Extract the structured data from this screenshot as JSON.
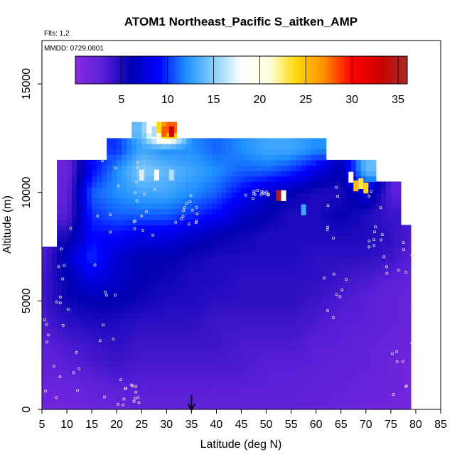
{
  "chart_data": {
    "type": "heatmap",
    "title": "ATOM1 Northeast_Pacific S_aitken_AMP",
    "flights_label": "Flts: 1,2",
    "dates_label": "MMDD: 0729,0801",
    "xlabel": "Latitude (deg N)",
    "ylabel": "Altitude (m)",
    "xlim": [
      5,
      85
    ],
    "ylim": [
      0,
      17000
    ],
    "x_ticks": [
      5,
      10,
      15,
      20,
      25,
      30,
      35,
      40,
      45,
      50,
      55,
      60,
      65,
      70,
      75,
      80,
      85
    ],
    "y_ticks": [
      0,
      5000,
      10000,
      15000
    ],
    "colorbar": {
      "range": [
        0,
        36
      ],
      "ticks": [
        5,
        10,
        15,
        20,
        25,
        30,
        35
      ],
      "placement": "top-inside",
      "colors": [
        "#8a2be2",
        "#5a1fd8",
        "#0000b0",
        "#0000ff",
        "#1e90ff",
        "#87cefa",
        "#ffffff",
        "#ffffe0",
        "#ffd700",
        "#ff8c00",
        "#ff0000",
        "#cd0000",
        "#a52a2a"
      ]
    },
    "marker": {
      "latitude": 35,
      "description": "arrow at x-axis"
    },
    "grid": false,
    "profiles": [
      {
        "lat": 5.5,
        "values": [
          [
            0,
            1.5
          ],
          [
            1000,
            2
          ],
          [
            2000,
            2.5
          ],
          [
            3000,
            3
          ],
          [
            4000,
            3.5
          ],
          [
            5000,
            4
          ],
          [
            6000,
            4
          ],
          [
            7000,
            3.5
          ]
        ]
      },
      {
        "lat": 10,
        "values": [
          [
            0,
            1.5
          ],
          [
            1000,
            2
          ],
          [
            2000,
            3
          ],
          [
            3000,
            3.5
          ],
          [
            4000,
            4.5
          ],
          [
            5000,
            5.5
          ],
          [
            6000,
            6
          ],
          [
            7000,
            7
          ],
          [
            8000,
            5
          ],
          [
            9000,
            3
          ],
          [
            10000,
            2.5
          ],
          [
            11000,
            2
          ]
        ]
      },
      {
        "lat": 15,
        "values": [
          [
            0,
            2
          ],
          [
            1000,
            2.5
          ],
          [
            2000,
            3.5
          ],
          [
            3000,
            4
          ],
          [
            4000,
            5
          ],
          [
            5000,
            6
          ],
          [
            6000,
            8
          ],
          [
            7000,
            10
          ],
          [
            8000,
            9
          ],
          [
            9000,
            10
          ],
          [
            10000,
            11
          ],
          [
            11000,
            9
          ]
        ]
      },
      {
        "lat": 20,
        "values": [
          [
            0,
            2
          ],
          [
            1000,
            3
          ],
          [
            2000,
            4
          ],
          [
            3000,
            4.5
          ],
          [
            4000,
            5
          ],
          [
            5000,
            6
          ],
          [
            6000,
            7
          ],
          [
            7000,
            7
          ],
          [
            8000,
            9
          ],
          [
            9000,
            11
          ],
          [
            10000,
            12
          ],
          [
            11000,
            12
          ],
          [
            12000,
            10
          ]
        ]
      },
      {
        "lat": 25,
        "values": [
          [
            0,
            2.5
          ],
          [
            1000,
            3
          ],
          [
            2000,
            3.5
          ],
          [
            3000,
            4
          ],
          [
            4000,
            4.5
          ],
          [
            5000,
            5.5
          ],
          [
            6000,
            6
          ],
          [
            7000,
            6
          ],
          [
            8000,
            8
          ],
          [
            9000,
            11
          ],
          [
            10000,
            13
          ],
          [
            11000,
            15
          ],
          [
            12000,
            13
          ],
          [
            12800,
            14
          ]
        ]
      },
      {
        "lat": 30,
        "values": [
          [
            0,
            2.5
          ],
          [
            1000,
            3
          ],
          [
            2000,
            3.5
          ],
          [
            3000,
            4
          ],
          [
            4000,
            4.5
          ],
          [
            5000,
            5
          ],
          [
            6000,
            5.5
          ],
          [
            7000,
            6
          ],
          [
            8000,
            8
          ],
          [
            9000,
            11
          ],
          [
            10000,
            13
          ],
          [
            11000,
            14
          ],
          [
            12000,
            12
          ],
          [
            12800,
            28
          ]
        ]
      },
      {
        "lat": 35,
        "values": [
          [
            0,
            2.5
          ],
          [
            1000,
            3
          ],
          [
            2000,
            3.5
          ],
          [
            3000,
            4
          ],
          [
            4000,
            4.5
          ],
          [
            5000,
            5
          ],
          [
            6000,
            5
          ],
          [
            7000,
            5.5
          ],
          [
            8000,
            7
          ],
          [
            9000,
            10
          ],
          [
            10000,
            12
          ],
          [
            11000,
            13
          ],
          [
            12000,
            12
          ]
        ]
      },
      {
        "lat": 40,
        "values": [
          [
            0,
            2.5
          ],
          [
            1000,
            3
          ],
          [
            2000,
            3.5
          ],
          [
            3000,
            4
          ],
          [
            4000,
            4
          ],
          [
            5000,
            4.5
          ],
          [
            6000,
            5
          ],
          [
            7000,
            5
          ],
          [
            8000,
            6
          ],
          [
            9000,
            9
          ],
          [
            10000,
            11
          ],
          [
            11000,
            12
          ],
          [
            12000,
            11
          ]
        ]
      },
      {
        "lat": 45,
        "values": [
          [
            0,
            2.5
          ],
          [
            1000,
            3
          ],
          [
            2000,
            3.5
          ],
          [
            3000,
            3.5
          ],
          [
            4000,
            4
          ],
          [
            5000,
            4.5
          ],
          [
            6000,
            4.5
          ],
          [
            7000,
            5
          ],
          [
            8000,
            5.5
          ],
          [
            9000,
            7
          ],
          [
            10000,
            9
          ],
          [
            11000,
            11
          ],
          [
            12000,
            12
          ]
        ]
      },
      {
        "lat": 50,
        "values": [
          [
            0,
            2.5
          ],
          [
            1000,
            3
          ],
          [
            2000,
            3
          ],
          [
            3000,
            3.5
          ],
          [
            4000,
            4
          ],
          [
            5000,
            4.5
          ],
          [
            6000,
            4.5
          ],
          [
            7000,
            5
          ],
          [
            8000,
            5
          ],
          [
            9000,
            6
          ],
          [
            10000,
            7
          ],
          [
            11000,
            11
          ],
          [
            12000,
            13
          ]
        ]
      },
      {
        "lat": 55,
        "values": [
          [
            0,
            2.5
          ],
          [
            1000,
            3
          ],
          [
            2000,
            3
          ],
          [
            3000,
            3.5
          ],
          [
            4000,
            4
          ],
          [
            5000,
            4.5
          ],
          [
            6000,
            4.5
          ],
          [
            7000,
            5
          ],
          [
            8000,
            5
          ],
          [
            9000,
            5
          ],
          [
            10000,
            6
          ],
          [
            11000,
            10
          ],
          [
            12000,
            13
          ]
        ]
      },
      {
        "lat": 60,
        "values": [
          [
            0,
            2.5
          ],
          [
            1000,
            2.5
          ],
          [
            2000,
            3
          ],
          [
            3000,
            3
          ],
          [
            4000,
            3.5
          ],
          [
            5000,
            4
          ],
          [
            6000,
            4.5
          ],
          [
            7000,
            4.5
          ],
          [
            8000,
            5
          ],
          [
            9000,
            5
          ],
          [
            10000,
            5
          ],
          [
            11000,
            8
          ],
          [
            12000,
            12
          ]
        ]
      },
      {
        "lat": 65,
        "values": [
          [
            0,
            2
          ],
          [
            1000,
            2.5
          ],
          [
            2000,
            2.5
          ],
          [
            3000,
            3
          ],
          [
            4000,
            3
          ],
          [
            5000,
            3.5
          ],
          [
            6000,
            4
          ],
          [
            7000,
            4.5
          ],
          [
            8000,
            5
          ],
          [
            9000,
            6
          ],
          [
            10000,
            5
          ],
          [
            11000,
            6
          ]
        ]
      },
      {
        "lat": 70,
        "values": [
          [
            0,
            2
          ],
          [
            1000,
            2
          ],
          [
            2000,
            2.5
          ],
          [
            3000,
            2.5
          ],
          [
            4000,
            3
          ],
          [
            5000,
            3
          ],
          [
            6000,
            3.5
          ],
          [
            7000,
            4.5
          ],
          [
            8000,
            5
          ],
          [
            9000,
            5
          ],
          [
            10000,
            8
          ],
          [
            11000,
            14
          ]
        ]
      },
      {
        "lat": 75,
        "values": [
          [
            0,
            1.5
          ],
          [
            1000,
            2
          ],
          [
            2000,
            2
          ],
          [
            3000,
            2
          ],
          [
            4000,
            2.5
          ],
          [
            5000,
            2.5
          ],
          [
            6000,
            3
          ],
          [
            7000,
            4
          ],
          [
            8000,
            4.5
          ],
          [
            9000,
            4
          ],
          [
            10000,
            3
          ]
        ]
      },
      {
        "lat": 79,
        "values": [
          [
            0,
            1.5
          ],
          [
            1000,
            1.5
          ],
          [
            2000,
            1.5
          ],
          [
            3000,
            2
          ],
          [
            4000,
            2
          ],
          [
            5000,
            2
          ],
          [
            6000,
            2.5
          ],
          [
            7000,
            3
          ],
          [
            8000,
            3.5
          ]
        ]
      }
    ],
    "hotspots": [
      {
        "lat": 27.5,
        "alt": 12800,
        "value": 16
      },
      {
        "lat": 29.5,
        "alt": 12800,
        "value": 28
      },
      {
        "lat": 31,
        "alt": 12800,
        "value": 33
      },
      {
        "lat": 52.5,
        "alt": 9850,
        "value": 35
      },
      {
        "lat": 53.5,
        "alt": 9850,
        "value": 19
      },
      {
        "lat": 57.5,
        "alt": 9200,
        "value": 13
      },
      {
        "lat": 67,
        "alt": 10700,
        "value": 19
      },
      {
        "lat": 68,
        "alt": 10300,
        "value": 25
      },
      {
        "lat": 69,
        "alt": 10400,
        "value": 23
      },
      {
        "lat": 70,
        "alt": 10200,
        "value": 24
      },
      {
        "lat": 25,
        "alt": 10800,
        "value": 17
      },
      {
        "lat": 28,
        "alt": 10800,
        "value": 18
      },
      {
        "lat": 31,
        "alt": 10800,
        "value": 16
      }
    ]
  }
}
